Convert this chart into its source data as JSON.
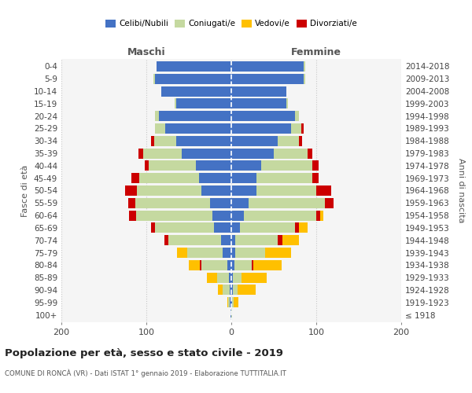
{
  "age_groups": [
    "100+",
    "95-99",
    "90-94",
    "85-89",
    "80-84",
    "75-79",
    "70-74",
    "65-69",
    "60-64",
    "55-59",
    "50-54",
    "45-49",
    "40-44",
    "35-39",
    "30-34",
    "25-29",
    "20-24",
    "15-19",
    "10-14",
    "5-9",
    "0-4"
  ],
  "birth_years": [
    "≤ 1918",
    "1919-1923",
    "1924-1928",
    "1929-1933",
    "1934-1938",
    "1939-1943",
    "1944-1948",
    "1949-1953",
    "1954-1958",
    "1959-1963",
    "1964-1968",
    "1969-1973",
    "1974-1978",
    "1979-1983",
    "1984-1988",
    "1989-1993",
    "1994-1998",
    "1999-2003",
    "2004-2008",
    "2009-2013",
    "2014-2018"
  ],
  "male_celibi": [
    1,
    2,
    2,
    3,
    5,
    10,
    12,
    20,
    22,
    25,
    35,
    38,
    42,
    58,
    65,
    78,
    85,
    65,
    82,
    90,
    88
  ],
  "male_coniugati": [
    0,
    2,
    8,
    14,
    30,
    42,
    62,
    70,
    90,
    88,
    76,
    70,
    55,
    46,
    26,
    12,
    5,
    2,
    0,
    2,
    0
  ],
  "male_vedovi": [
    0,
    1,
    6,
    12,
    15,
    12,
    5,
    3,
    2,
    1,
    1,
    0,
    0,
    0,
    0,
    0,
    0,
    0,
    0,
    0,
    0
  ],
  "male_divorziati": [
    0,
    0,
    0,
    0,
    2,
    0,
    5,
    4,
    8,
    8,
    14,
    10,
    5,
    5,
    3,
    0,
    0,
    0,
    0,
    0,
    0
  ],
  "female_nubili": [
    0,
    1,
    2,
    2,
    4,
    5,
    5,
    10,
    15,
    20,
    30,
    30,
    35,
    50,
    55,
    70,
    75,
    65,
    65,
    85,
    85
  ],
  "female_coniugate": [
    1,
    2,
    5,
    10,
    20,
    35,
    50,
    65,
    85,
    90,
    70,
    65,
    60,
    40,
    25,
    12,
    5,
    2,
    0,
    2,
    2
  ],
  "female_vedove": [
    0,
    5,
    22,
    30,
    35,
    30,
    25,
    15,
    8,
    5,
    2,
    1,
    0,
    0,
    0,
    0,
    0,
    0,
    0,
    0,
    0
  ],
  "female_divorziate": [
    0,
    0,
    0,
    0,
    2,
    0,
    5,
    5,
    5,
    10,
    18,
    8,
    8,
    5,
    3,
    3,
    0,
    0,
    0,
    0,
    0
  ],
  "color_celibi": "#4472c4",
  "color_coniugati": "#c5d9a0",
  "color_vedovi": "#ffc000",
  "color_divorziati": "#cc0000",
  "title": "Popolazione per età, sesso e stato civile - 2019",
  "subtitle": "COMUNE DI RONCÀ (VR) - Dati ISTAT 1° gennaio 2019 - Elaborazione TUTTITALIA.IT",
  "label_maschi": "Maschi",
  "label_femmine": "Femmine",
  "ylabel_left": "Fasce di età",
  "ylabel_right": "Anni di nascita",
  "legend_labels": [
    "Celibi/Nubili",
    "Coniugati/e",
    "Vedovi/e",
    "Divorziati/e"
  ],
  "xlim": [
    -200,
    200
  ],
  "xticks": [
    -200,
    -100,
    0,
    100,
    200
  ],
  "xtick_labels": [
    "200",
    "100",
    "0",
    "100",
    "200"
  ],
  "bg_color": "#f5f5f5",
  "grid_color": "#c8c8c8"
}
